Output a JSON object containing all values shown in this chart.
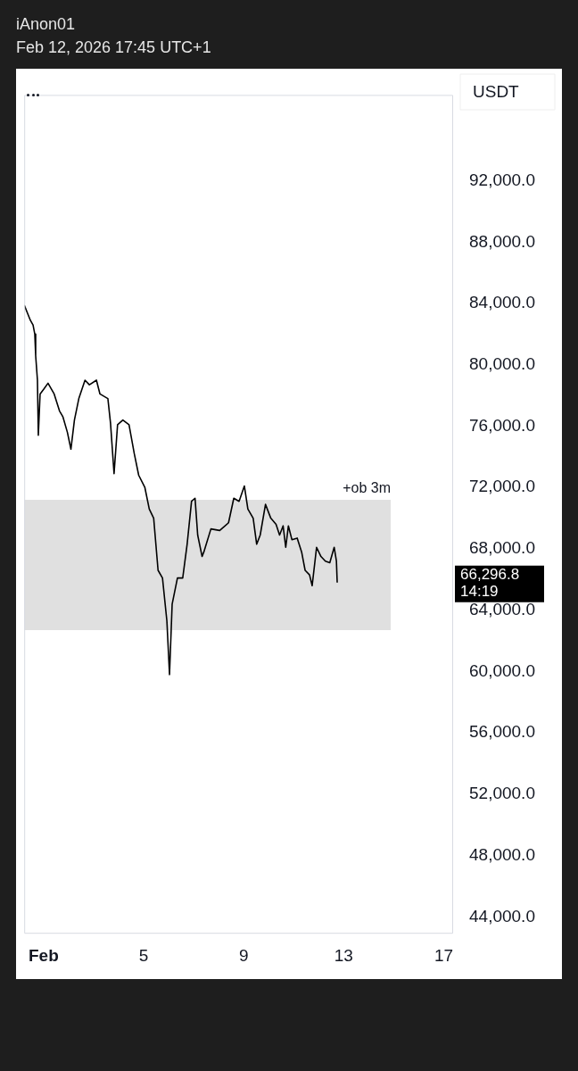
{
  "chart_data": {
    "type": "line",
    "title": "iAnon01",
    "subtitle": "Feb 12, 2026 17:45 UTC+1",
    "ylabel": "USDT",
    "color": "#000000",
    "marker": "none",
    "line_style": "solid",
    "grid": false,
    "legend": false,
    "x": [
      "2026-01-31T05:25",
      "2026-01-31T11:19",
      "2026-01-31T13:52",
      "2026-01-31T15:33",
      "2026-01-31T16:23",
      "2026-01-31T18:05",
      "2026-01-31T18:56",
      "2026-01-31T20:37",
      "2026-02-01T00:00",
      "2026-02-01T04:14",
      "2026-02-01T10:08",
      "2026-02-01T15:13",
      "2026-02-01T18:35",
      "2026-02-01T22:49",
      "2026-02-02T02:12",
      "2026-02-02T05:35",
      "2026-02-02T09:48",
      "2026-02-02T15:43",
      "2026-02-02T19:56",
      "2026-02-03T02:42",
      "2026-02-03T06:05",
      "2026-02-03T13:41",
      "2026-02-03T16:13",
      "2026-02-03T19:36",
      "2026-02-03T22:59",
      "2026-02-04T04:03",
      "2026-02-04T09:58",
      "2026-02-04T15:02",
      "2026-02-04T19:16",
      "2026-02-05T01:11",
      "2026-02-05T05:24",
      "2026-02-05T09:38",
      "2026-02-05T13:51",
      "2026-02-05T18:05",
      "2026-02-05T22:18",
      "2026-02-06T00:50",
      "2026-02-06T03:22",
      "2026-02-06T08:26",
      "2026-02-06T13:30",
      "2026-02-06T17:44",
      "2026-02-06T21:58",
      "2026-02-07T01:20",
      "2026-02-07T03:52",
      "2026-02-07T08:06",
      "2026-02-07T09:47",
      "2026-02-07T16:33",
      "2026-02-08T01:00",
      "2026-02-08T09:27",
      "2026-02-08T14:31",
      "2026-02-08T19:35",
      "2026-02-09T00:40",
      "2026-02-09T04:02",
      "2026-02-09T09:07",
      "2026-02-09T12:29",
      "2026-02-09T15:52",
      "2026-02-09T20:56",
      "2026-02-10T02:01",
      "2026-02-10T07:05",
      "2026-02-10T10:27",
      "2026-02-10T13:50",
      "2026-02-10T16:22",
      "2026-02-10T18:55",
      "2026-02-10T22:17",
      "2026-02-11T03:22",
      "2026-02-11T07:36",
      "2026-02-11T10:58",
      "2026-02-11T15:12",
      "2026-02-11T17:44",
      "2026-02-11T21:57",
      "2026-02-12T02:11",
      "2026-02-12T06:24",
      "2026-02-12T10:38",
      "2026-02-12T14:51",
      "2026-02-12T17:00",
      "2026-02-12T17:45"
    ],
    "values": [
      83900,
      82900,
      82600,
      82000,
      80600,
      79000,
      75400,
      78100,
      78400,
      78800,
      78100,
      77000,
      76600,
      75600,
      74500,
      76400,
      77800,
      79000,
      78700,
      79000,
      78100,
      77800,
      76200,
      72900,
      76100,
      76400,
      76100,
      74200,
      72800,
      72000,
      70600,
      70000,
      66600,
      66100,
      63300,
      59800,
      64400,
      66100,
      66100,
      68300,
      71100,
      71300,
      68900,
      67500,
      67800,
      69300,
      69200,
      69700,
      71300,
      71100,
      72100,
      70600,
      70000,
      68300,
      68900,
      70900,
      70000,
      69600,
      68900,
      69500,
      68100,
      69500,
      68600,
      68700,
      67800,
      66600,
      66300,
      65600,
      68100,
      67500,
      67200,
      67100,
      68100,
      67200,
      65800
    ],
    "xlim": [
      "2026-01-31T05:25",
      "2026-02-17T09:00"
    ],
    "xticks": [
      {
        "value": "2026-02-01",
        "label": "Feb"
      },
      {
        "value": "2026-02-05",
        "label": "5"
      },
      {
        "value": "2026-02-09",
        "label": "9"
      },
      {
        "value": "2026-02-13",
        "label": "13"
      },
      {
        "value": "2026-02-17",
        "label": "17"
      }
    ],
    "ylim": [
      42900,
      97600
    ],
    "yticks": [
      {
        "value": 44000,
        "label": "44,000.0"
      },
      {
        "value": 48000,
        "label": "48,000.0"
      },
      {
        "value": 52000,
        "label": "52,000.0"
      },
      {
        "value": 56000,
        "label": "56,000.0"
      },
      {
        "value": 60000,
        "label": "60,000.0"
      },
      {
        "value": 64000,
        "label": "64,000.0"
      },
      {
        "value": 68000,
        "label": "68,000.0"
      },
      {
        "value": 72000,
        "label": "72,000.0"
      },
      {
        "value": 76000,
        "label": "76,000.0"
      },
      {
        "value": 80000,
        "label": "80,000.0"
      },
      {
        "value": 84000,
        "label": "84,000.0"
      },
      {
        "value": 88000,
        "label": "88,000.0"
      },
      {
        "value": 92000,
        "label": "92,000.0"
      }
    ],
    "bands": [
      {
        "axis": "y",
        "from": 62700,
        "to": 71200,
        "label": "+ob 3m",
        "color": "#e0e0e0"
      }
    ],
    "annotations": [
      "66,296.8",
      "14:19"
    ]
  }
}
